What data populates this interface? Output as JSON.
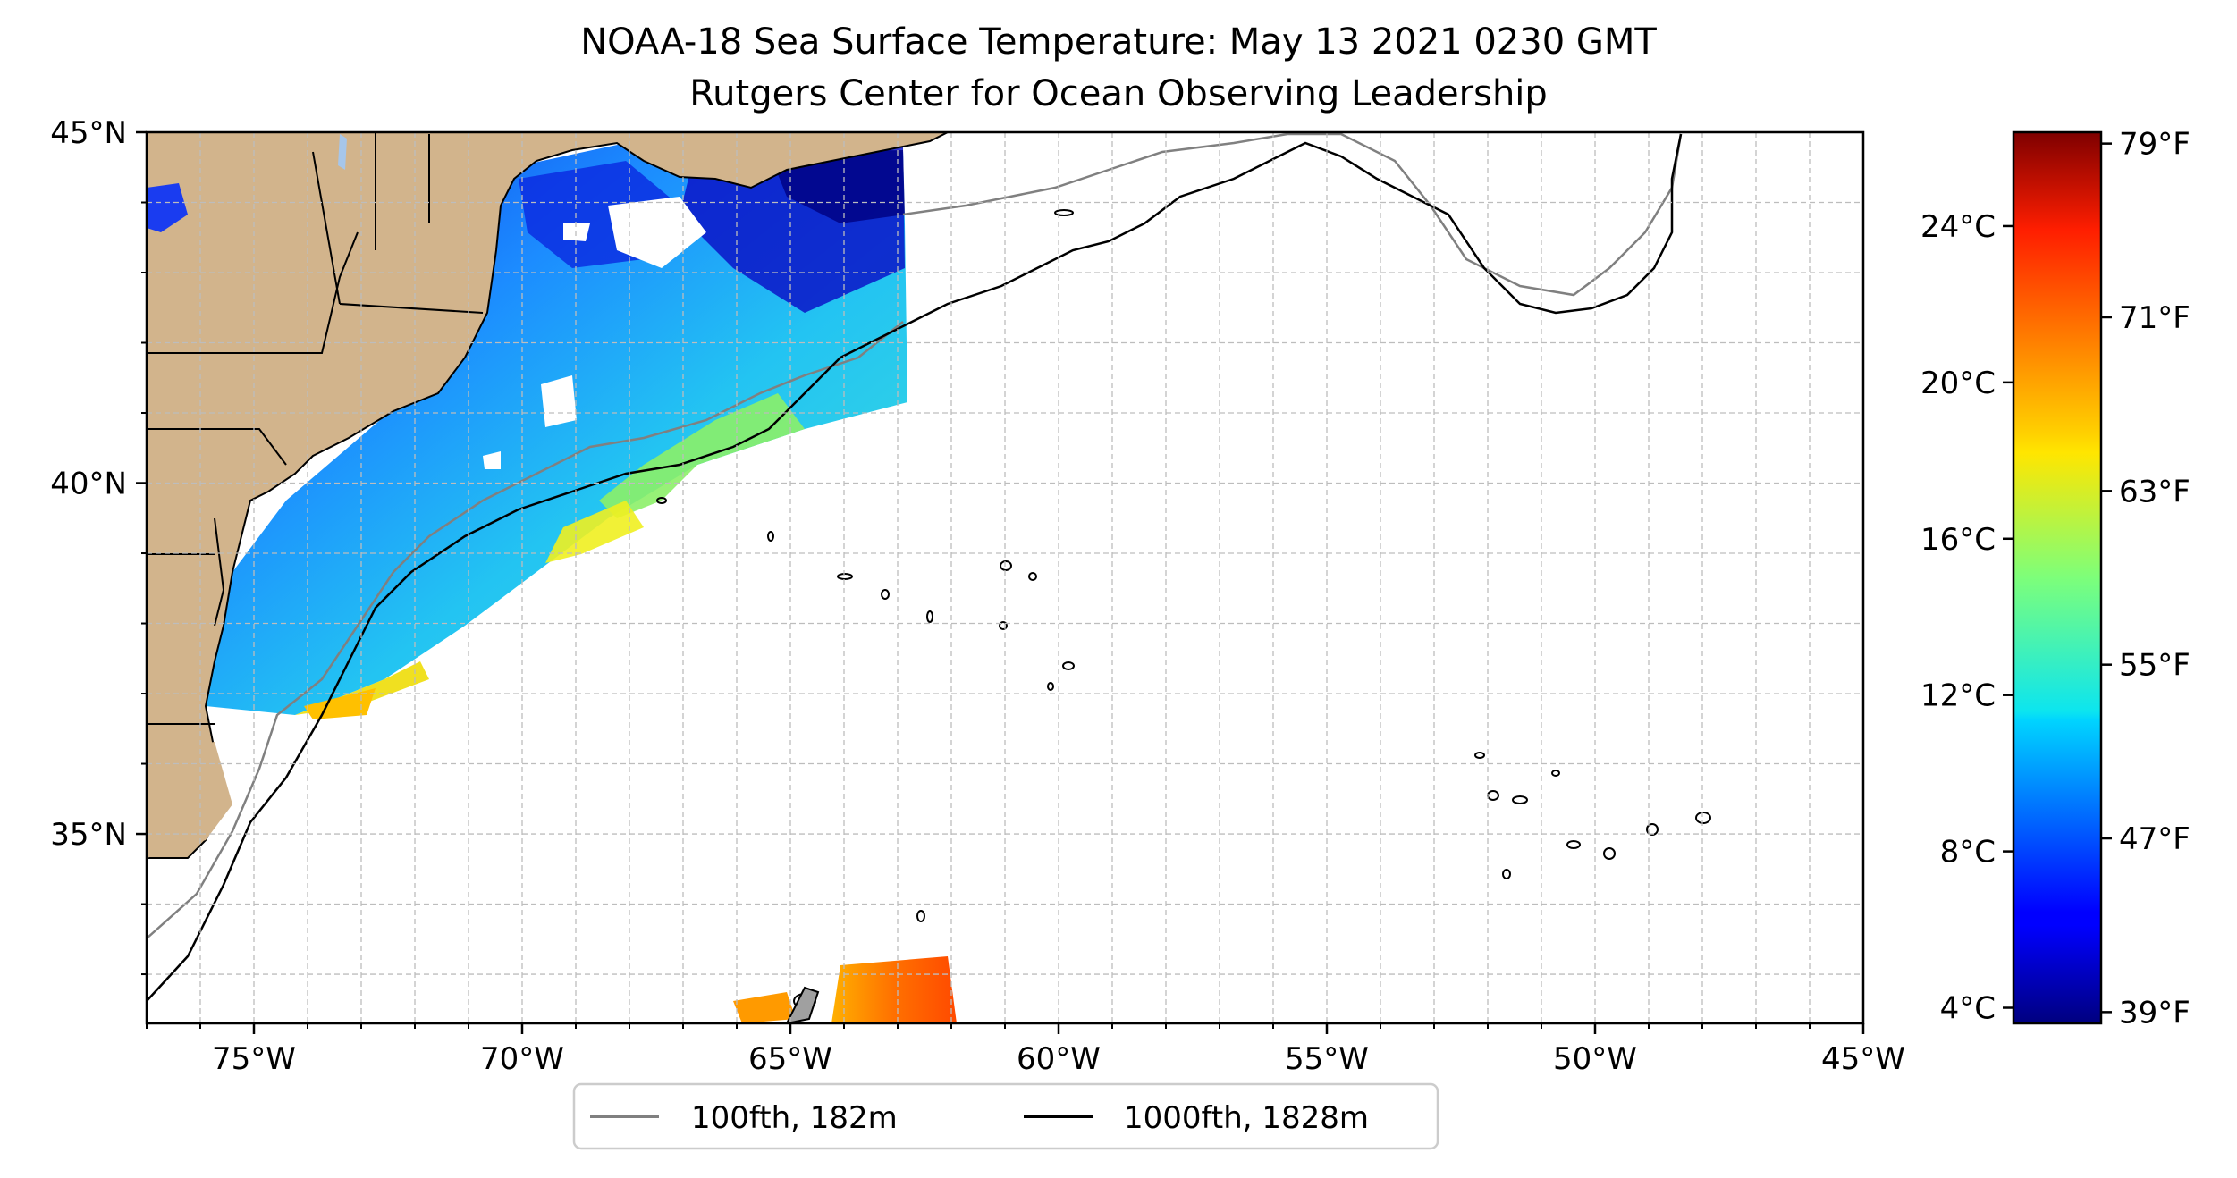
{
  "title": {
    "line1": "NOAA-18 Sea Surface Temperature: May 13 2021 0230 GMT",
    "line2": "Rutgers Center for Ocean Observing Leadership"
  },
  "map": {
    "lon_range": [
      -77,
      -45
    ],
    "lat_range": [
      32.3,
      45
    ],
    "x_ticks": [
      {
        "lon": -75,
        "label": "75°W"
      },
      {
        "lon": -70,
        "label": "70°W"
      },
      {
        "lon": -65,
        "label": "65°W"
      },
      {
        "lon": -60,
        "label": "60°W"
      },
      {
        "lon": -55,
        "label": "55°W"
      },
      {
        "lon": -50,
        "label": "50°W"
      },
      {
        "lon": -45,
        "label": "45°W"
      }
    ],
    "y_ticks": [
      {
        "lat": 45,
        "label": "45°N"
      },
      {
        "lat": 40,
        "label": "40°N"
      },
      {
        "lat": 35,
        "label": "35°N"
      }
    ],
    "grid": "dashed, 1° spacing",
    "colors": {
      "land": "#d2b48c",
      "ocean": "#ffffff",
      "isobath_100fth": "#808080",
      "isobath_1000fth": "#000000"
    }
  },
  "legend": {
    "placement": "bottom-center",
    "entries": [
      {
        "label": "100fth, 182m",
        "color": "#808080"
      },
      {
        "label": "1000fth, 1828m",
        "color": "#000000"
      }
    ]
  },
  "colorbar": {
    "colormap": "jet",
    "celsius_ticks": [
      "24°C",
      "20°C",
      "16°C",
      "12°C",
      "8°C",
      "4°C"
    ],
    "fahrenheit_ticks": [
      "79°F",
      "71°F",
      "63°F",
      "55°F",
      "47°F",
      "39°F"
    ]
  }
}
